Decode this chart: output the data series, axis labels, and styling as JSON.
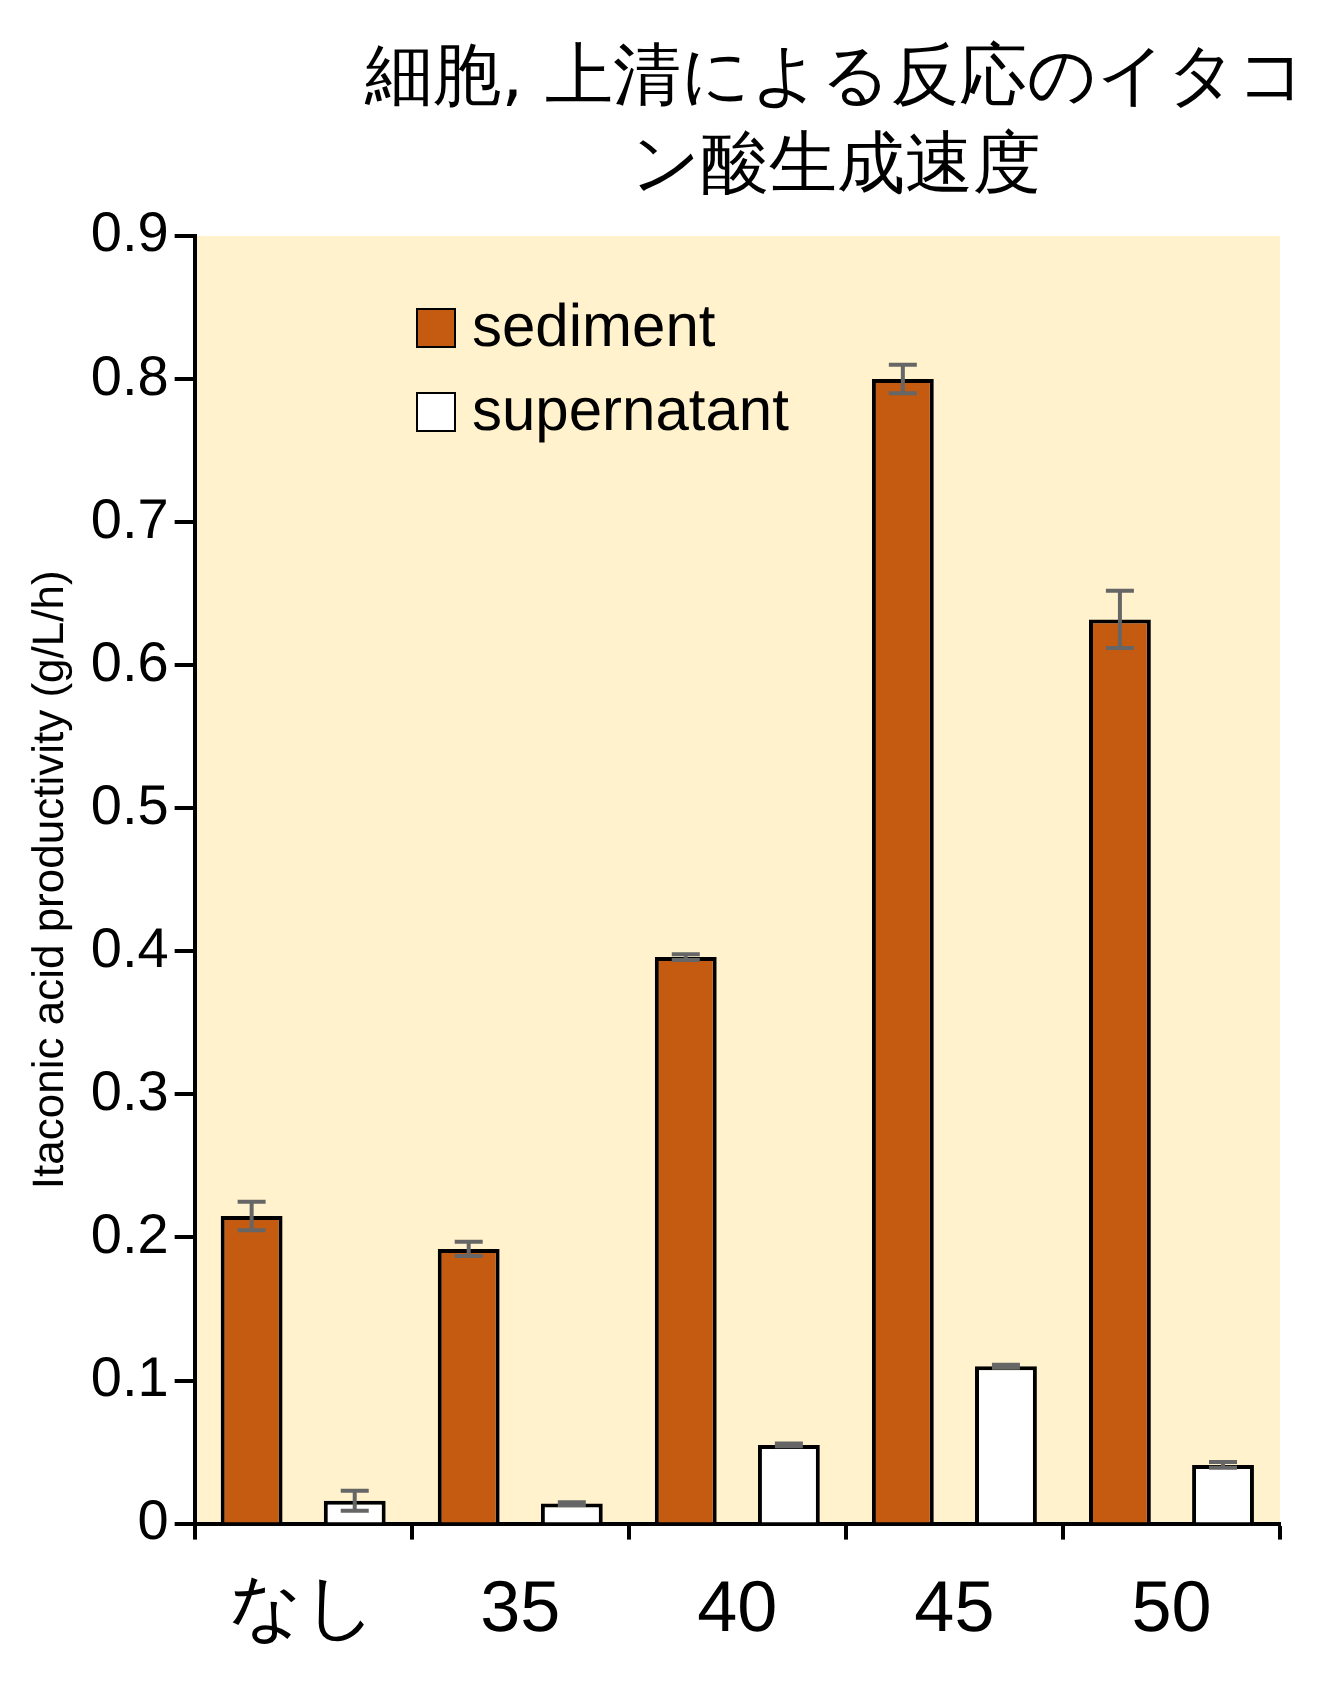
{
  "chart_data": {
    "type": "bar",
    "title": "細胞, 上清による反応のイタコン酸生成速度",
    "ylabel": "Itaconic acid productivity (g/L/h)",
    "categories": [
      "なし",
      "35",
      "40",
      "45",
      "50"
    ],
    "series": [
      {
        "name": "sediment",
        "color": "#c55a11",
        "values": [
          0.215,
          0.192,
          0.396,
          0.8,
          0.632
        ],
        "errors": [
          0.01,
          0.005,
          0.002,
          0.01,
          0.02
        ]
      },
      {
        "name": "supernatant",
        "color": "#ffffff",
        "values": [
          0.016,
          0.014,
          0.055,
          0.11,
          0.041
        ],
        "errors": [
          0.007,
          0.001,
          0.001,
          0.001,
          0.002
        ]
      }
    ],
    "ylim": [
      0,
      0.9
    ],
    "yticks": [
      0,
      0.1,
      0.2,
      0.3,
      0.4,
      0.5,
      0.6,
      0.7,
      0.8,
      0.9
    ],
    "grid": false,
    "legend": "top left"
  }
}
